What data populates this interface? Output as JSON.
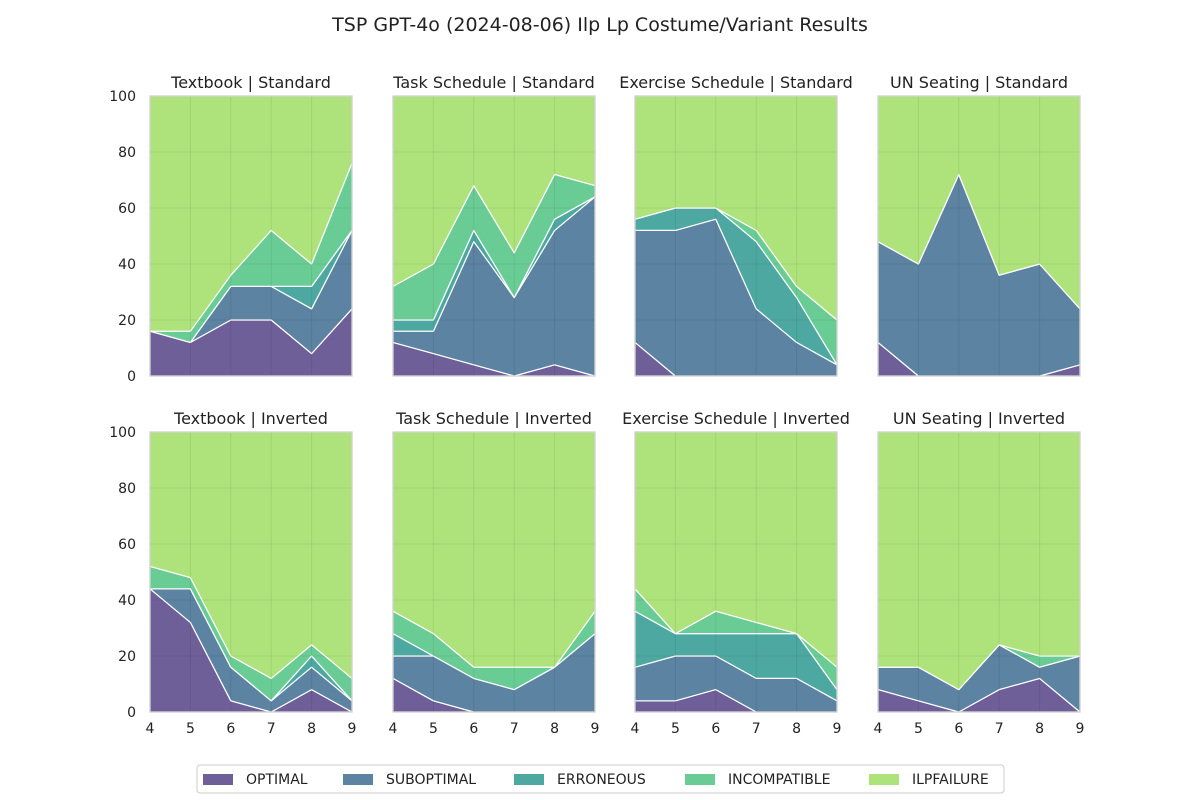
{
  "chart_data": {
    "type": "area",
    "title": "TSP GPT-4o (2024-08-06) Ilp Lp Costume/Variant Results",
    "categories": [
      "OPTIMAL",
      "SUBOPTIMAL",
      "ERRONEOUS",
      "INCOMPATIBLE",
      "ILPFAILURE"
    ],
    "colors": {
      "OPTIMAL": "#5e4e8e",
      "SUBOPTIMAL": "#4a7697",
      "ERRONEOUS": "#3a9e97",
      "INCOMPATIBLE": "#5ac68a",
      "ILPFAILURE": "#a5df6b"
    },
    "x": [
      4,
      5,
      6,
      7,
      8,
      9
    ],
    "xticks": [
      "4",
      "5",
      "6",
      "7",
      "8",
      "9"
    ],
    "ylim": [
      0,
      100
    ],
    "yticks": [
      "0",
      "20",
      "40",
      "60",
      "80",
      "100"
    ],
    "stacked": true,
    "grid": true,
    "legend_position": "bottom-center",
    "panels": [
      {
        "title": "Textbook | Standard",
        "series": [
          {
            "name": "OPTIMAL",
            "values": [
              16,
              12,
              20,
              20,
              8,
              24
            ]
          },
          {
            "name": "SUBOPTIMAL",
            "values": [
              0,
              0,
              12,
              12,
              16,
              28
            ]
          },
          {
            "name": "ERRONEOUS",
            "values": [
              0,
              0,
              0,
              0,
              8,
              0
            ]
          },
          {
            "name": "INCOMPATIBLE",
            "values": [
              0,
              4,
              4,
              20,
              8,
              24
            ]
          },
          {
            "name": "ILPFAILURE",
            "values": [
              84,
              84,
              64,
              48,
              60,
              24
            ]
          }
        ]
      },
      {
        "title": "Task Schedule | Standard",
        "series": [
          {
            "name": "OPTIMAL",
            "values": [
              12,
              8,
              4,
              0,
              4,
              0
            ]
          },
          {
            "name": "SUBOPTIMAL",
            "values": [
              4,
              8,
              44,
              28,
              48,
              64
            ]
          },
          {
            "name": "ERRONEOUS",
            "values": [
              4,
              4,
              4,
              0,
              4,
              0
            ]
          },
          {
            "name": "INCOMPATIBLE",
            "values": [
              12,
              20,
              16,
              16,
              16,
              4
            ]
          },
          {
            "name": "ILPFAILURE",
            "values": [
              68,
              60,
              32,
              56,
              28,
              32
            ]
          }
        ]
      },
      {
        "title": "Exercise Schedule | Standard",
        "series": [
          {
            "name": "OPTIMAL",
            "values": [
              12,
              0,
              0,
              0,
              0,
              0
            ]
          },
          {
            "name": "SUBOPTIMAL",
            "values": [
              40,
              52,
              56,
              24,
              12,
              4
            ]
          },
          {
            "name": "ERRONEOUS",
            "values": [
              4,
              8,
              4,
              24,
              16,
              0
            ]
          },
          {
            "name": "INCOMPATIBLE",
            "values": [
              0,
              0,
              0,
              4,
              4,
              16
            ]
          },
          {
            "name": "ILPFAILURE",
            "values": [
              44,
              40,
              40,
              48,
              68,
              80
            ]
          }
        ]
      },
      {
        "title": "UN Seating | Standard",
        "series": [
          {
            "name": "OPTIMAL",
            "values": [
              12,
              0,
              0,
              0,
              0,
              4
            ]
          },
          {
            "name": "SUBOPTIMAL",
            "values": [
              36,
              40,
              72,
              36,
              40,
              20
            ]
          },
          {
            "name": "ERRONEOUS",
            "values": [
              0,
              0,
              0,
              0,
              0,
              0
            ]
          },
          {
            "name": "INCOMPATIBLE",
            "values": [
              0,
              0,
              0,
              0,
              0,
              0
            ]
          },
          {
            "name": "ILPFAILURE",
            "values": [
              52,
              60,
              28,
              64,
              60,
              76
            ]
          }
        ]
      },
      {
        "title": "Textbook | Inverted",
        "series": [
          {
            "name": "OPTIMAL",
            "values": [
              44,
              32,
              4,
              0,
              8,
              0
            ]
          },
          {
            "name": "SUBOPTIMAL",
            "values": [
              0,
              12,
              12,
              4,
              8,
              4
            ]
          },
          {
            "name": "ERRONEOUS",
            "values": [
              0,
              0,
              0,
              0,
              4,
              0
            ]
          },
          {
            "name": "INCOMPATIBLE",
            "values": [
              8,
              4,
              4,
              8,
              4,
              8
            ]
          },
          {
            "name": "ILPFAILURE",
            "values": [
              48,
              52,
              80,
              88,
              76,
              88
            ]
          }
        ]
      },
      {
        "title": "Task Schedule | Inverted",
        "series": [
          {
            "name": "OPTIMAL",
            "values": [
              12,
              4,
              0,
              0,
              0,
              0
            ]
          },
          {
            "name": "SUBOPTIMAL",
            "values": [
              8,
              16,
              12,
              8,
              16,
              28
            ]
          },
          {
            "name": "ERRONEOUS",
            "values": [
              8,
              0,
              0,
              0,
              0,
              0
            ]
          },
          {
            "name": "INCOMPATIBLE",
            "values": [
              8,
              8,
              4,
              8,
              0,
              8
            ]
          },
          {
            "name": "ILPFAILURE",
            "values": [
              64,
              72,
              84,
              84,
              84,
              64
            ]
          }
        ]
      },
      {
        "title": "Exercise Schedule | Inverted",
        "series": [
          {
            "name": "OPTIMAL",
            "values": [
              4,
              4,
              8,
              0,
              0,
              0
            ]
          },
          {
            "name": "SUBOPTIMAL",
            "values": [
              12,
              16,
              12,
              12,
              12,
              4
            ]
          },
          {
            "name": "ERRONEOUS",
            "values": [
              20,
              8,
              8,
              16,
              16,
              4
            ]
          },
          {
            "name": "INCOMPATIBLE",
            "values": [
              8,
              0,
              8,
              4,
              0,
              8
            ]
          },
          {
            "name": "ILPFAILURE",
            "values": [
              56,
              72,
              64,
              68,
              72,
              84
            ]
          }
        ]
      },
      {
        "title": "UN Seating | Inverted",
        "series": [
          {
            "name": "OPTIMAL",
            "values": [
              8,
              4,
              0,
              8,
              12,
              0
            ]
          },
          {
            "name": "SUBOPTIMAL",
            "values": [
              8,
              12,
              8,
              16,
              4,
              20
            ]
          },
          {
            "name": "ERRONEOUS",
            "values": [
              0,
              0,
              0,
              0,
              0,
              0
            ]
          },
          {
            "name": "INCOMPATIBLE",
            "values": [
              0,
              0,
              0,
              0,
              4,
              0
            ]
          },
          {
            "name": "ILPFAILURE",
            "values": [
              84,
              84,
              92,
              76,
              80,
              80
            ]
          }
        ]
      }
    ]
  }
}
